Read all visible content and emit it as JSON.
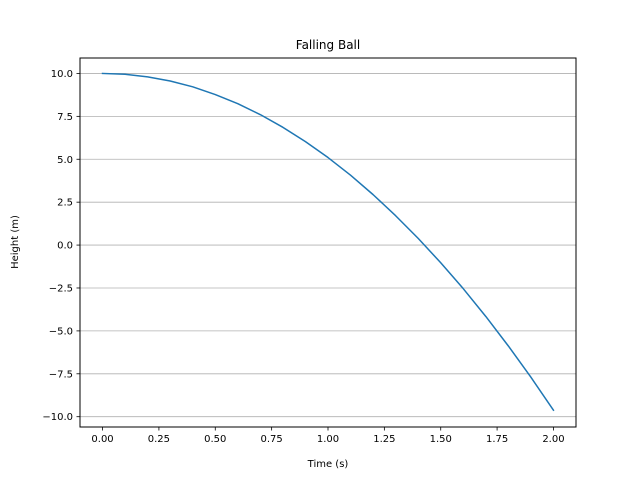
{
  "chart_data": {
    "type": "line",
    "title": "Falling Ball",
    "xlabel": "Time (s)",
    "ylabel": "Height (m)",
    "xlim": [
      -0.1,
      2.1
    ],
    "ylim": [
      -10.6,
      10.9
    ],
    "xticks": [
      0.0,
      0.25,
      0.5,
      0.75,
      1.0,
      1.25,
      1.5,
      1.75,
      2.0
    ],
    "xtick_labels": [
      "0.00",
      "0.25",
      "0.50",
      "0.75",
      "1.00",
      "1.25",
      "1.50",
      "1.75",
      "2.00"
    ],
    "yticks": [
      10.0,
      7.5,
      5.0,
      2.5,
      0.0,
      -2.5,
      -5.0,
      -7.5,
      -10.0
    ],
    "ytick_labels": [
      "10.0",
      "7.5",
      "5.0",
      "2.5",
      "0.0",
      "−2.5",
      "−5.0",
      "−7.5",
      "−10.0"
    ],
    "grid": "y-major",
    "series": [
      {
        "color": "#1f77b4",
        "x": [
          0.0,
          0.1,
          0.2,
          0.3,
          0.4,
          0.5,
          0.6,
          0.7,
          0.8,
          0.9,
          1.0,
          1.1,
          1.2,
          1.3,
          1.4,
          1.5,
          1.6,
          1.7,
          1.8,
          1.9,
          2.0
        ],
        "y": [
          10.0,
          9.95,
          9.8,
          9.56,
          9.22,
          8.77,
          8.24,
          7.6,
          6.86,
          6.03,
          5.1,
          4.07,
          2.94,
          1.71,
          0.39,
          -1.03,
          -2.54,
          -4.16,
          -5.88,
          -7.7,
          -9.62
        ]
      }
    ]
  }
}
